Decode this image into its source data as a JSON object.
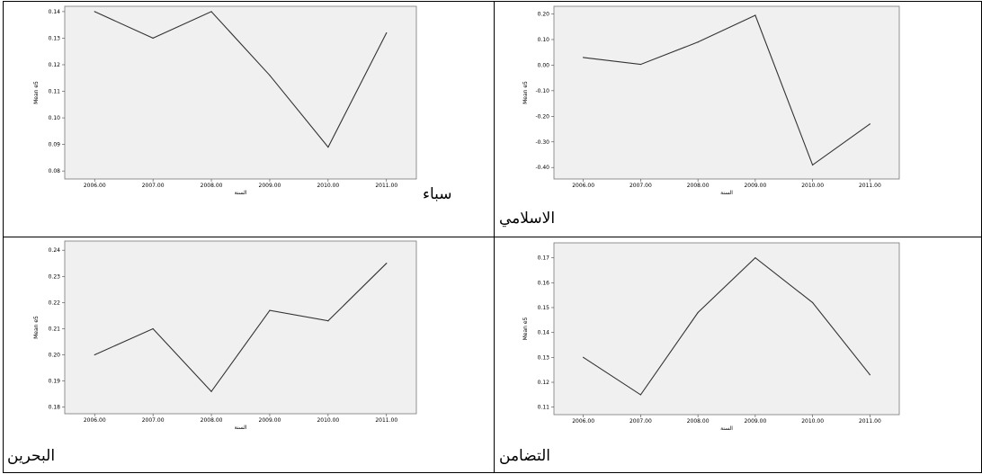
{
  "chart_data": [
    {
      "type": "line",
      "bank_label": "سباء",
      "xlabel": "السنة",
      "ylabel": "Mean e5",
      "x": [
        "2006.00",
        "2007.00",
        "2008.00",
        "2009.00",
        "2010.00",
        "2011.00"
      ],
      "values": [
        0.14,
        0.13,
        0.14,
        0.116,
        0.089,
        0.132
      ],
      "yticks": [
        "0.08",
        "0.09",
        "0.10",
        "0.11",
        "0.12",
        "0.13",
        "0.14"
      ],
      "ylim": [
        0.077,
        0.142
      ],
      "grid": false,
      "background": "#f0f0f0",
      "line_color": "#333333"
    },
    {
      "type": "line",
      "bank_label": "الاسلامي",
      "xlabel": "السنة",
      "ylabel": "Mean e5",
      "x": [
        "2006.00",
        "2007.00",
        "2008.00",
        "2009.00",
        "2010.00",
        "2011.00"
      ],
      "values": [
        0.03,
        0.003,
        0.09,
        0.195,
        -0.39,
        -0.23
      ],
      "yticks": [
        "0.20",
        "0.10",
        "0.00",
        "-0.10",
        "-0.20",
        "-0.30",
        "-0.40"
      ],
      "ylim": [
        -0.445,
        0.23
      ],
      "grid": false,
      "background": "#f0f0f0",
      "line_color": "#333333"
    },
    {
      "type": "line",
      "bank_label": "البحرين",
      "xlabel": "السنة",
      "ylabel": "Mean e5",
      "x": [
        "2006.00",
        "2007.00",
        "2008.00",
        "2009.00",
        "2010.00",
        "2011.00"
      ],
      "values": [
        0.2,
        0.21,
        0.186,
        0.217,
        0.213,
        0.235
      ],
      "yticks": [
        "0.18",
        "0.19",
        "0.20",
        "0.21",
        "0.22",
        "0.23",
        "0.24"
      ],
      "ylim": [
        0.1775,
        0.2435
      ],
      "grid": false,
      "background": "#f0f0f0",
      "line_color": "#333333"
    },
    {
      "type": "line",
      "bank_label": "التضامن",
      "xlabel": "السنة",
      "ylabel": "Mean e5",
      "x": [
        "2006.00",
        "2007.00",
        "2008.00",
        "2009.00",
        "2010.00",
        "2011.00"
      ],
      "values": [
        0.13,
        0.115,
        0.148,
        0.17,
        0.152,
        0.123
      ],
      "yticks": [
        "0.11",
        "0.12",
        "0.13",
        "0.14",
        "0.15",
        "0.16",
        "0.17"
      ],
      "ylim": [
        0.107,
        0.176
      ],
      "grid": false,
      "background": "#f0f0f0",
      "line_color": "#333333"
    }
  ]
}
